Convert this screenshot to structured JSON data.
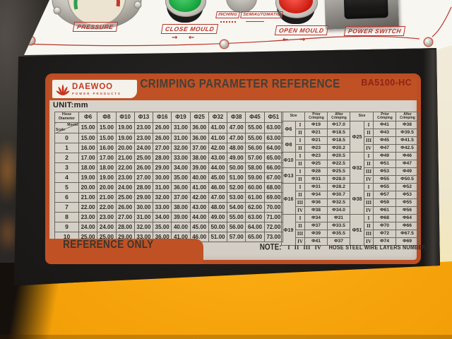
{
  "control_panel": {
    "pressure_label": "PRESSURE",
    "close_mould_label": "CLOSE MOULD",
    "close_arrows": "→ ←",
    "selector_left": "INCHING",
    "selector_right": "SEMIAUTOMATIC",
    "open_mould_label": "OPEN MOULD",
    "open_arrows": "← →",
    "power_switch_label": "POWER SWITCH"
  },
  "sticker": {
    "brand": "DAEWOO",
    "brand_subtitle": "POWER PRODUCTS",
    "title": "CRIMPING PARAMETER REFERENCE",
    "model": "BA5100-HC",
    "unit_label": "UNIT:mm",
    "reference_label": "REFERENCE ONLY",
    "note_label": "NOTE:",
    "note_numerals": [
      "I",
      "II",
      "III",
      "IV"
    ],
    "note_text": "HOSE STEEL WIRE LAYERS NUMBER",
    "accent_orange": "#c05125",
    "label_red": "#b5342a"
  },
  "scale_table": {
    "corner_label": "Hose Diameter",
    "diag_top": "Mould",
    "diag_bottom": "Scale",
    "columns": [
      "Φ6",
      "Φ8",
      "Φ10",
      "Φ13",
      "Φ16",
      "Φ19",
      "Φ25",
      "Φ32",
      "Φ38",
      "Φ45",
      "Φ51"
    ],
    "mould_row": [
      "15.00",
      "15.00",
      "19.00",
      "23.00",
      "26.00",
      "31.00",
      "36.00",
      "41.00",
      "47.00",
      "55.00",
      "63.00"
    ],
    "rows": [
      {
        "scale": "0",
        "values": [
          "15.00",
          "15.00",
          "19.00",
          "23.00",
          "26.00",
          "31.00",
          "36.00",
          "41.00",
          "47.00",
          "55.00",
          "63.00"
        ]
      },
      {
        "scale": "1",
        "values": [
          "16.00",
          "16.00",
          "20.00",
          "24.00",
          "27.00",
          "32.00",
          "37.00",
          "42.00",
          "48.00",
          "56.00",
          "64.00"
        ]
      },
      {
        "scale": "2",
        "values": [
          "17.00",
          "17.00",
          "21.00",
          "25.00",
          "28.00",
          "33.00",
          "38.00",
          "43.00",
          "49.00",
          "57.00",
          "65.00"
        ]
      },
      {
        "scale": "3",
        "values": [
          "18.00",
          "18.00",
          "22.00",
          "26.00",
          "29.00",
          "34.00",
          "39.00",
          "44.00",
          "50.00",
          "58.00",
          "66.00"
        ]
      },
      {
        "scale": "4",
        "values": [
          "19.00",
          "19.00",
          "23.00",
          "27.00",
          "30.00",
          "35.00",
          "40.00",
          "45.00",
          "51.00",
          "59.00",
          "67.00"
        ]
      },
      {
        "scale": "5",
        "values": [
          "20.00",
          "20.00",
          "24.00",
          "28.00",
          "31.00",
          "36.00",
          "41.00",
          "46.00",
          "52.00",
          "60.00",
          "68.00"
        ]
      },
      {
        "scale": "6",
        "values": [
          "21.00",
          "21.00",
          "25.00",
          "29.00",
          "32.00",
          "37.00",
          "42.00",
          "47.00",
          "53.00",
          "61.00",
          "69.00"
        ]
      },
      {
        "scale": "7",
        "values": [
          "22.00",
          "22.00",
          "26.00",
          "30.00",
          "33.00",
          "38.00",
          "43.00",
          "48.00",
          "54.00",
          "62.00",
          "70.00"
        ]
      },
      {
        "scale": "8",
        "values": [
          "23.00",
          "23.00",
          "27.00",
          "31.00",
          "34.00",
          "39.00",
          "44.00",
          "49.00",
          "55.00",
          "63.00",
          "71.00"
        ]
      },
      {
        "scale": "9",
        "values": [
          "24.00",
          "24.00",
          "28.00",
          "32.00",
          "35.00",
          "40.00",
          "45.00",
          "50.00",
          "56.00",
          "64.00",
          "72.00"
        ]
      },
      {
        "scale": "10",
        "values": [
          "25.00",
          "25.00",
          "29.00",
          "33.00",
          "36.00",
          "41.00",
          "46.00",
          "51.00",
          "57.00",
          "65.00",
          "73.00"
        ]
      }
    ]
  },
  "crimp_table": {
    "headers": [
      "Size",
      "Prior Crimping",
      "After Crimping"
    ],
    "left_groups": [
      {
        "size": "Φ6",
        "rows": [
          [
            "I",
            "Φ19",
            "Φ17.0"
          ],
          [
            "II",
            "Φ21",
            "Φ18.5"
          ]
        ]
      },
      {
        "size": "Φ8",
        "rows": [
          [
            "I",
            "Φ21",
            "Φ18.5"
          ],
          [
            "II",
            "Φ23",
            "Φ20.2"
          ]
        ]
      },
      {
        "size": "Φ10",
        "rows": [
          [
            "I",
            "Φ23",
            "Φ20.5"
          ],
          [
            "II",
            "Φ25",
            "Φ22.5"
          ]
        ]
      },
      {
        "size": "Φ13",
        "rows": [
          [
            "I",
            "Φ28",
            "Φ25.5"
          ],
          [
            "II",
            "Φ31",
            "Φ28.0"
          ]
        ]
      },
      {
        "size": "Φ16",
        "rows": [
          [
            "I",
            "Φ31",
            "Φ28.2"
          ],
          [
            "II",
            "Φ34",
            "Φ30.7"
          ],
          [
            "III",
            "Φ36",
            "Φ32.5"
          ],
          [
            "IV",
            "Φ38",
            "Φ34.0"
          ]
        ]
      },
      {
        "size": "Φ19",
        "rows": [
          [
            "I",
            "Φ34",
            "Φ31"
          ],
          [
            "II",
            "Φ37",
            "Φ33.5"
          ],
          [
            "III",
            "Φ39",
            "Φ35.5"
          ],
          [
            "IV",
            "Φ41",
            "Φ37"
          ]
        ]
      }
    ],
    "right_groups": [
      {
        "size": "Φ25",
        "rows": [
          [
            "I",
            "Φ41",
            "Φ38"
          ],
          [
            "II",
            "Φ43",
            "Φ39.5"
          ],
          [
            "III",
            "Φ45",
            "Φ41.5"
          ],
          [
            "IV",
            "Φ47",
            "Φ42.5"
          ]
        ]
      },
      {
        "size": "Φ32",
        "rows": [
          [
            "I",
            "Φ49",
            "Φ46"
          ],
          [
            "II",
            "Φ51",
            "Φ47"
          ],
          [
            "III",
            "Φ53",
            "Φ49"
          ],
          [
            "IV",
            "Φ55",
            "Φ50.5"
          ]
        ]
      },
      {
        "size": "Φ38",
        "rows": [
          [
            "I",
            "Φ55",
            "Φ52"
          ],
          [
            "II",
            "Φ57",
            "Φ53"
          ],
          [
            "III",
            "Φ59",
            "Φ55"
          ],
          [
            "IV",
            "Φ61",
            "Φ56"
          ]
        ]
      },
      {
        "size": "Φ51",
        "rows": [
          [
            "I",
            "Φ68",
            "Φ64"
          ],
          [
            "II",
            "Φ70",
            "Φ66"
          ],
          [
            "III",
            "Φ72",
            "Φ67.5"
          ],
          [
            "IV",
            "Φ74",
            "Φ69"
          ]
        ]
      }
    ]
  }
}
